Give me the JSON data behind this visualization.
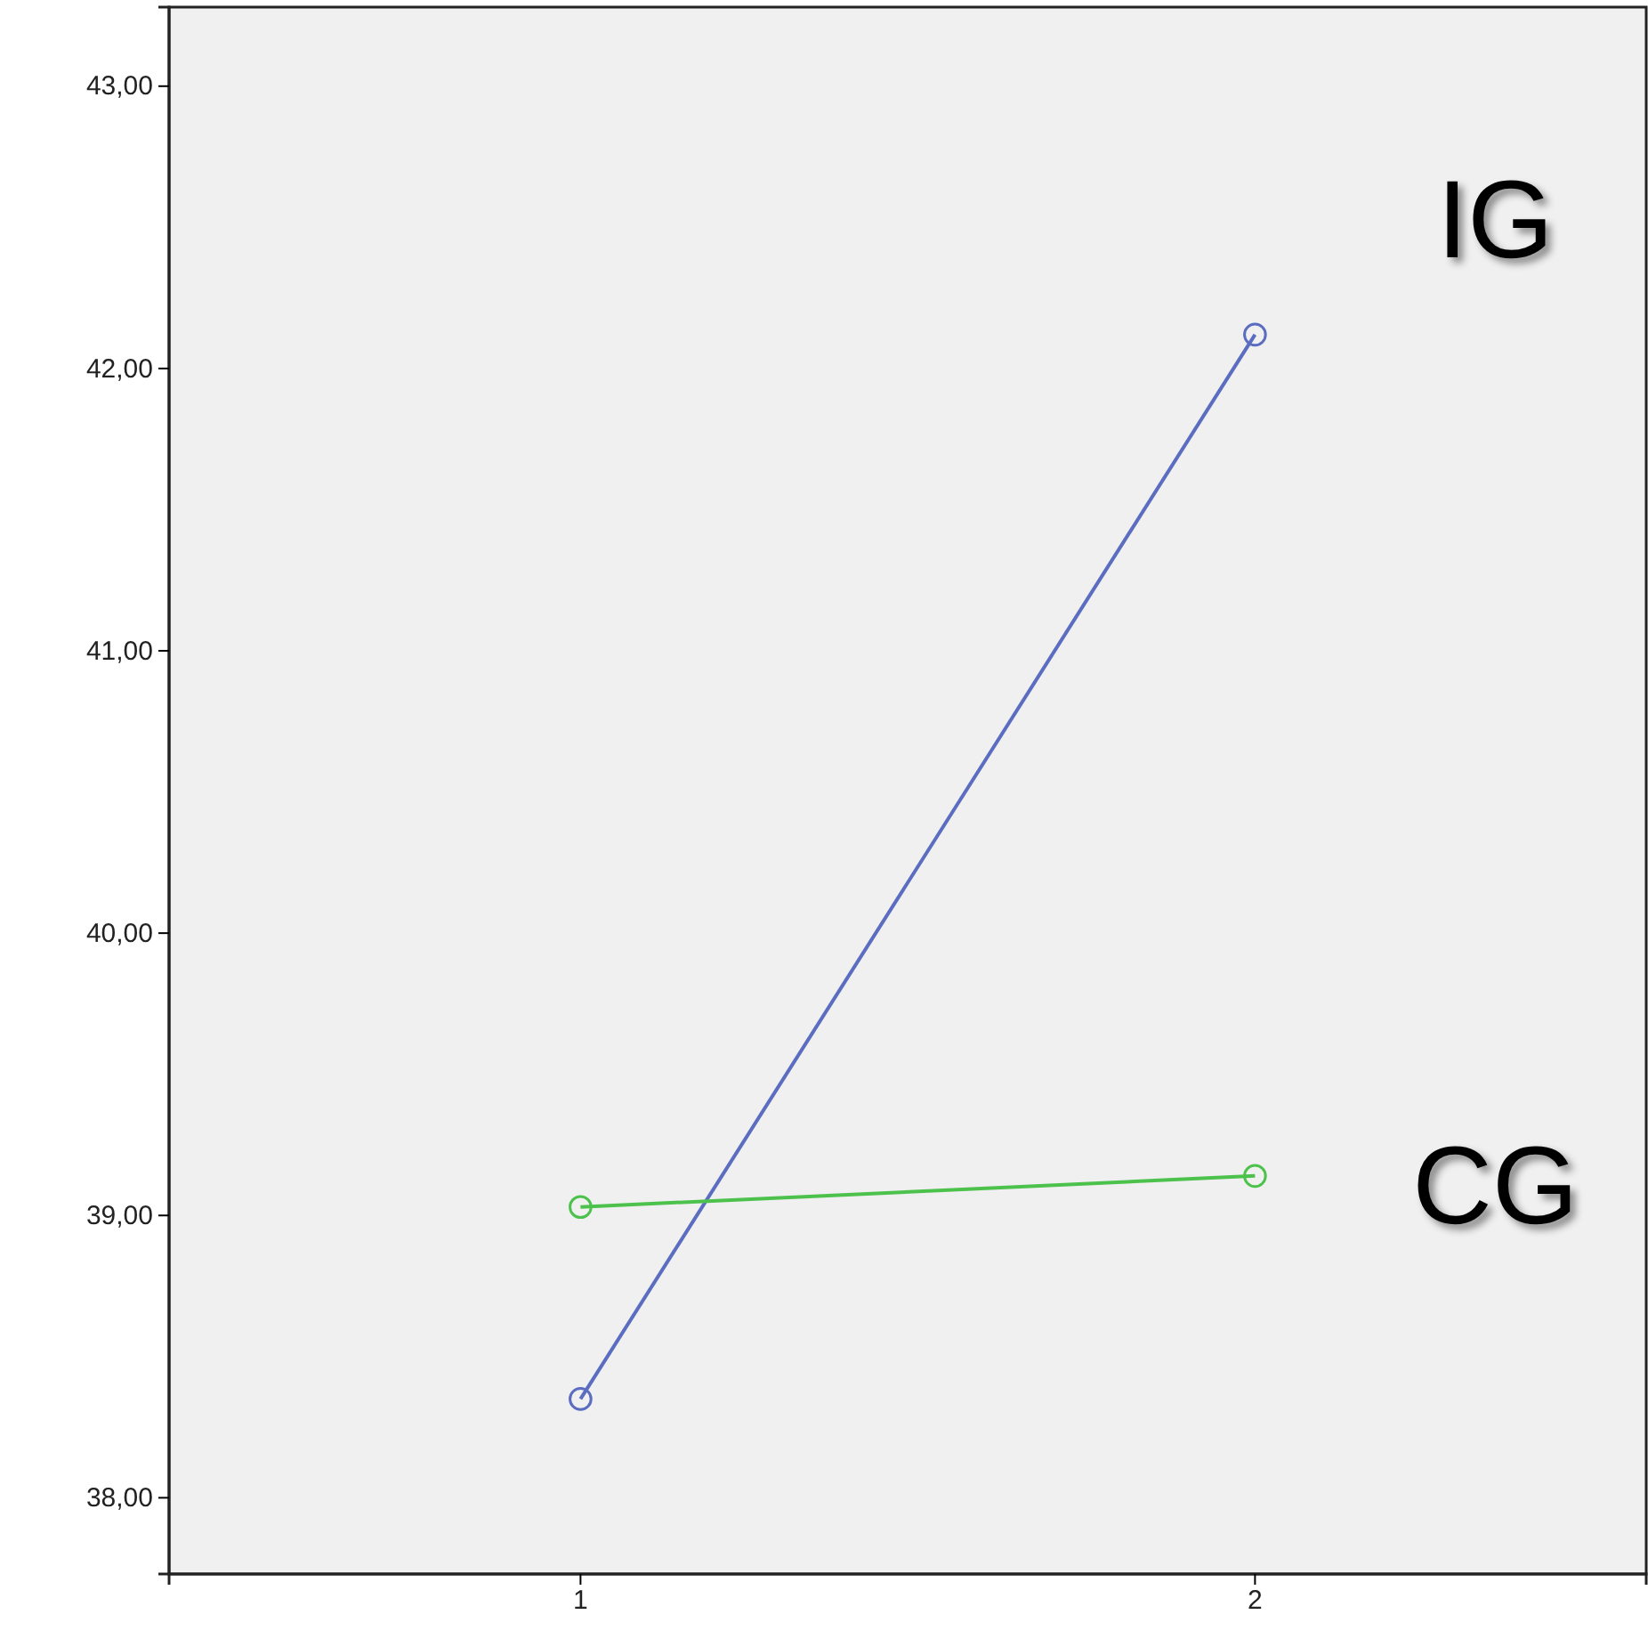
{
  "chart_data": {
    "type": "line",
    "x": [
      1,
      2
    ],
    "series": [
      {
        "name": "IG",
        "color": "#5a6dc0",
        "values": [
          38.35,
          42.12
        ]
      },
      {
        "name": "CG",
        "color": "#4cc24c",
        "values": [
          39.03,
          39.14
        ]
      }
    ],
    "xlim": [
      0.39,
      2.58
    ],
    "xticks": [
      1,
      2
    ],
    "ylim": [
      37.73,
      43.28
    ],
    "yticks": [
      {
        "value": 38,
        "label": "38,00"
      },
      {
        "value": 39,
        "label": "39,00"
      },
      {
        "value": 40,
        "label": "40,00"
      },
      {
        "value": 41,
        "label": "41,00"
      },
      {
        "value": 42,
        "label": "42,00"
      },
      {
        "value": 43,
        "label": "43,00"
      }
    ],
    "marker": "circle",
    "legend": false,
    "grid": false
  }
}
